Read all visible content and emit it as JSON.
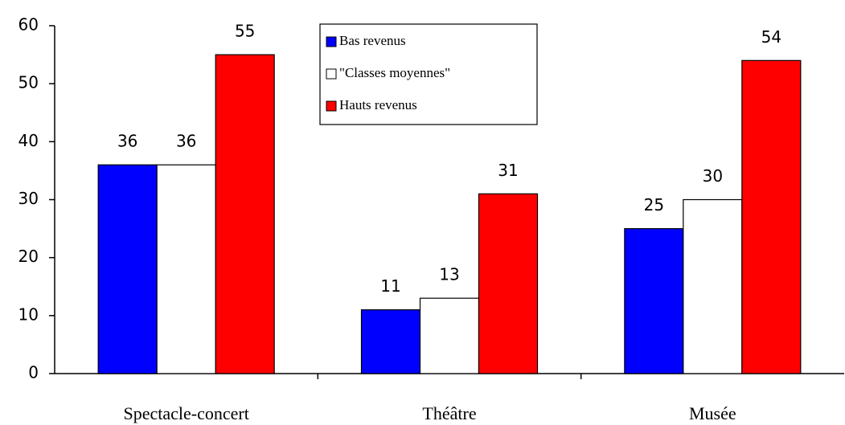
{
  "chart_data": {
    "type": "bar",
    "categories": [
      "Spectacle-concert",
      "Théâtre",
      "Musée"
    ],
    "series": [
      {
        "name": "Bas revenus",
        "color": "#0000ff",
        "values": [
          36,
          11,
          25
        ]
      },
      {
        "name": "\"Classes moyennes\"",
        "color": "#ffffff",
        "values": [
          36,
          13,
          30
        ]
      },
      {
        "name": "Hauts revenus",
        "color": "#ff0000",
        "values": [
          55,
          31,
          54
        ]
      }
    ],
    "ylim": [
      0,
      60
    ],
    "yticks": [
      0,
      10,
      20,
      30,
      40,
      50,
      60
    ],
    "grid": false,
    "legend": "top"
  }
}
